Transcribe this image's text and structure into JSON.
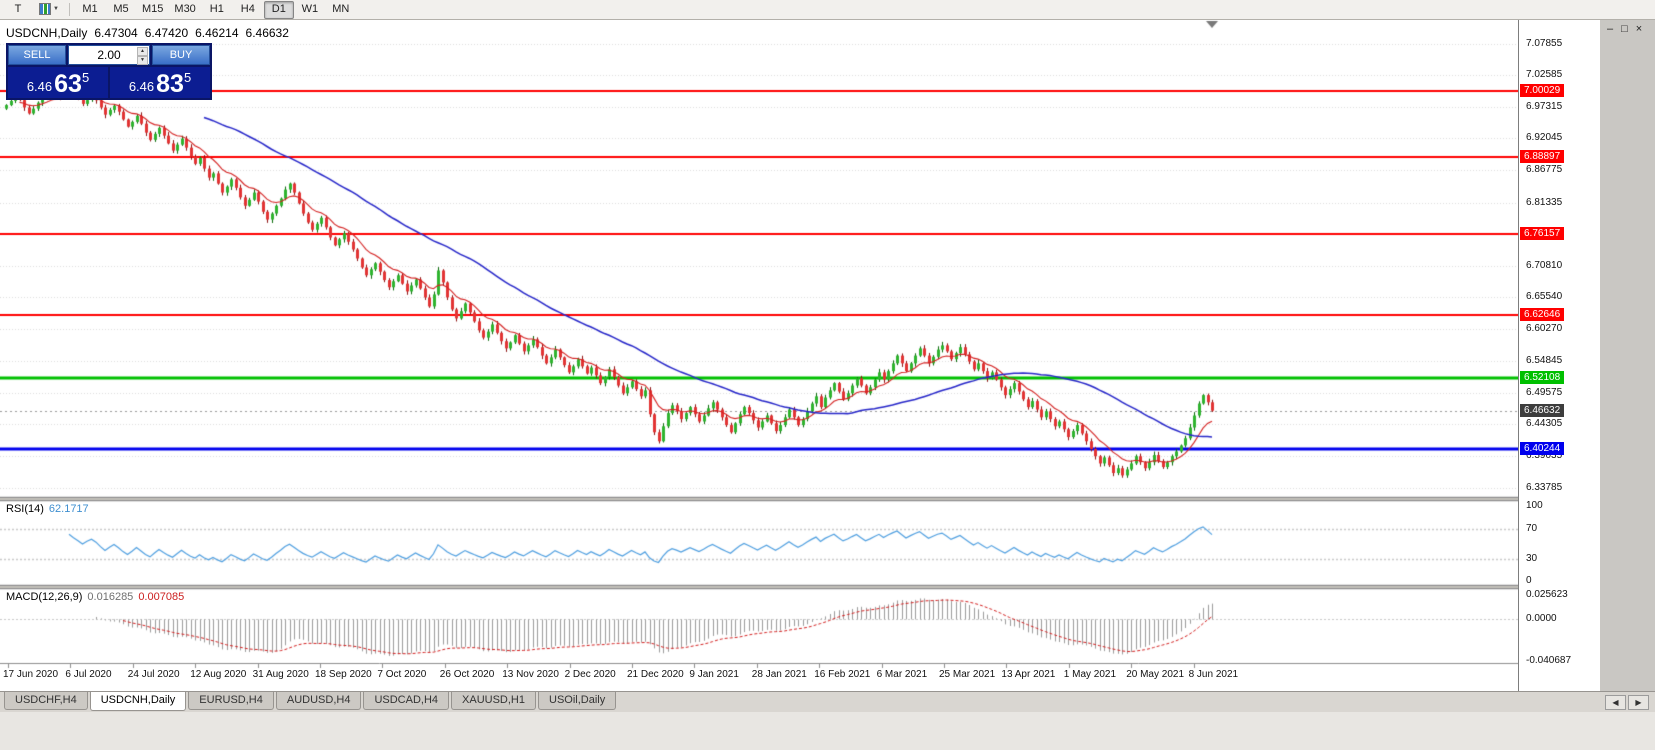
{
  "toolbar": {
    "templates_label": "T",
    "timeframes": [
      "M1",
      "M5",
      "M15",
      "M30",
      "H1",
      "H4",
      "D1",
      "W1",
      "MN"
    ],
    "active_timeframe": "D1"
  },
  "window_controls": {
    "minimize": "–",
    "restore": "□",
    "close": "×"
  },
  "chart": {
    "symbol_period": "USDCNH,Daily",
    "open": "6.47304",
    "high": "6.47420",
    "low": "6.46214",
    "close": "6.46632"
  },
  "one_click": {
    "sell_label": "SELL",
    "buy_label": "BUY",
    "volume": "2.00",
    "sell": {
      "prefix": "6.46",
      "big": "63",
      "sup": "5"
    },
    "buy": {
      "prefix": "6.46",
      "big": "83",
      "sup": "5"
    }
  },
  "rsi": {
    "name": "RSI(14)",
    "value": "62.1717",
    "levels": [
      "100",
      "70",
      "30",
      "0"
    ]
  },
  "macd": {
    "name": "MACD(12,26,9)",
    "value": "0.016285",
    "signal_value": "0.007085",
    "levels": [
      "0.025623",
      "0.0000",
      "-0.040687"
    ]
  },
  "tabs": [
    {
      "label": "USDCHF,H4",
      "active": false
    },
    {
      "label": "USDCNH,Daily",
      "active": true
    },
    {
      "label": "EURUSD,H4",
      "active": false
    },
    {
      "label": "AUDUSD,H4",
      "active": false
    },
    {
      "label": "USDCAD,H4",
      "active": false
    },
    {
      "label": "XAUUSD,H1",
      "active": false
    },
    {
      "label": "USOil,Daily",
      "active": false
    }
  ],
  "tab_scroll": {
    "left": "◀",
    "right": "▶"
  },
  "chart_data": {
    "type": "candlestick",
    "title": "USDCNH,Daily",
    "ohlc_current": {
      "open": 6.47304,
      "high": 6.4742,
      "low": 6.46214,
      "close": 6.46632
    },
    "price_axis": {
      "min": 6.322,
      "max": 7.118,
      "labels": [
        "7.07855",
        "7.02585",
        "6.97315",
        "6.92045",
        "6.86775",
        "6.81335",
        "6.70810",
        "6.65540",
        "6.60270",
        "6.54845",
        "6.49575",
        "6.44305",
        "6.39035",
        "6.33785"
      ]
    },
    "dates": [
      "17 Jun 2020",
      "6 Jul 2020",
      "24 Jul 2020",
      "12 Aug 2020",
      "31 Aug 2020",
      "18 Sep 2020",
      "7 Oct 2020",
      "26 Oct 2020",
      "13 Nov 2020",
      "2 Dec 2020",
      "21 Dec 2020",
      "9 Jan 2021",
      "28 Jan 2021",
      "16 Feb 2021",
      "6 Mar 2021",
      "25 Mar 2021",
      "13 Apr 2021",
      "1 May 2021",
      "20 May 2021",
      "8 Jun 2021"
    ],
    "hlines": [
      {
        "price": 7.00029,
        "label": "7.00029",
        "color": "#ff0000",
        "width": 2
      },
      {
        "price": 6.88897,
        "label": "6.88897",
        "color": "#ff0000",
        "width": 2
      },
      {
        "price": 6.76157,
        "label": "6.76157",
        "color": "#ff0000",
        "width": 2
      },
      {
        "price": 6.62646,
        "label": "6.62646",
        "color": "#ff0000",
        "width": 2
      },
      {
        "price": 6.52108,
        "label": "6.52108",
        "color": "#00c000",
        "width": 3
      },
      {
        "price": 6.40244,
        "label": "6.40244",
        "color": "#0000ee",
        "width": 3
      }
    ],
    "current_price": {
      "price": 6.46632,
      "label": "6.46632",
      "color": "#3d3d3d"
    },
    "colors": {
      "up": "#2fb42f",
      "up_dark": "#0a6b0a",
      "down": "#e23434",
      "down_dark": "#8f1212",
      "ma_fast": "#d42020",
      "ma_slow": "#2626c9",
      "rsi_line": "#4f9fe0",
      "macd_hist": "#9c9c9c",
      "macd_signal": "#d42020",
      "grid": "#dcdcdc"
    },
    "indicators": {
      "rsi_period": 14,
      "macd": [
        12,
        26,
        9
      ],
      "ma_fast_period": 10,
      "ma_slow_period": 45,
      "macd_range": {
        "max": 0.026,
        "min": -0.041
      }
    },
    "closes": [
      6.976,
      6.983,
      6.99,
      6.985,
      6.972,
      6.962,
      6.97,
      6.98,
      6.988,
      6.994,
      6.999,
      6.996,
      6.99,
      6.995,
      7.0,
      6.993,
      6.986,
      6.978,
      6.985,
      6.991,
      6.984,
      6.972,
      6.96,
      6.968,
      6.975,
      6.965,
      6.952,
      6.94,
      6.948,
      6.958,
      6.945,
      6.93,
      6.918,
      6.928,
      6.938,
      6.925,
      6.912,
      6.9,
      6.91,
      6.92,
      6.905,
      6.89,
      6.878,
      6.888,
      6.87,
      6.855,
      6.862,
      6.845,
      6.83,
      6.84,
      6.852,
      6.838,
      6.822,
      6.808,
      6.818,
      6.83,
      6.815,
      6.798,
      6.785,
      6.795,
      6.808,
      6.82,
      6.835,
      6.845,
      6.83,
      6.812,
      6.795,
      6.78,
      6.768,
      6.778,
      6.788,
      6.772,
      6.755,
      6.742,
      6.752,
      6.762,
      6.748,
      6.735,
      6.72,
      6.705,
      6.692,
      6.702,
      6.712,
      6.698,
      6.684,
      6.672,
      6.682,
      6.692,
      6.678,
      6.665,
      6.675,
      6.685,
      6.67,
      6.655,
      6.64,
      6.66,
      6.7,
      6.68,
      6.655,
      6.635,
      6.62,
      6.632,
      6.645,
      6.63,
      6.615,
      6.6,
      6.588,
      6.598,
      6.61,
      6.596,
      6.582,
      6.57,
      6.58,
      6.592,
      6.578,
      6.565,
      6.575,
      6.585,
      6.572,
      6.558,
      6.545,
      6.555,
      6.568,
      6.555,
      6.542,
      6.53,
      6.54,
      6.552,
      6.54,
      6.528,
      6.538,
      6.525,
      6.512,
      6.522,
      6.535,
      6.522,
      6.508,
      6.495,
      6.505,
      6.515,
      6.502,
      6.49,
      6.5,
      6.46,
      6.43,
      6.415,
      6.44,
      6.462,
      6.475,
      6.465,
      6.452,
      6.462,
      6.472,
      6.46,
      6.448,
      6.458,
      6.47,
      6.48,
      6.468,
      6.455,
      6.442,
      6.43,
      6.445,
      6.46,
      6.472,
      6.462,
      6.45,
      6.438,
      6.448,
      6.458,
      6.445,
      6.432,
      6.442,
      6.455,
      6.468,
      6.455,
      6.442,
      6.452,
      6.465,
      6.478,
      6.49,
      6.472,
      6.488,
      6.5,
      6.512,
      6.498,
      6.485,
      6.495,
      6.508,
      6.52,
      6.508,
      6.495,
      6.505,
      6.518,
      6.53,
      6.518,
      6.532,
      6.545,
      6.558,
      6.545,
      6.532,
      6.545,
      6.558,
      6.57,
      6.558,
      6.545,
      6.556,
      6.568,
      6.575,
      6.565,
      6.552,
      6.562,
      6.572,
      6.56,
      6.548,
      6.535,
      6.545,
      6.532,
      6.52,
      6.53,
      6.518,
      6.505,
      6.492,
      6.502,
      6.512,
      6.498,
      6.485,
      6.472,
      6.482,
      6.468,
      6.455,
      6.465,
      6.452,
      6.44,
      6.448,
      6.435,
      6.422,
      6.432,
      6.442,
      6.428,
      6.415,
      6.402,
      6.39,
      6.378,
      6.388,
      6.375,
      6.362,
      6.37,
      6.358,
      6.368,
      6.378,
      6.39,
      6.38,
      6.37,
      6.38,
      6.392,
      6.382,
      6.372,
      6.38,
      6.39,
      6.398,
      6.408,
      6.42,
      6.438,
      6.458,
      6.478,
      6.492,
      6.48,
      6.466
    ]
  }
}
